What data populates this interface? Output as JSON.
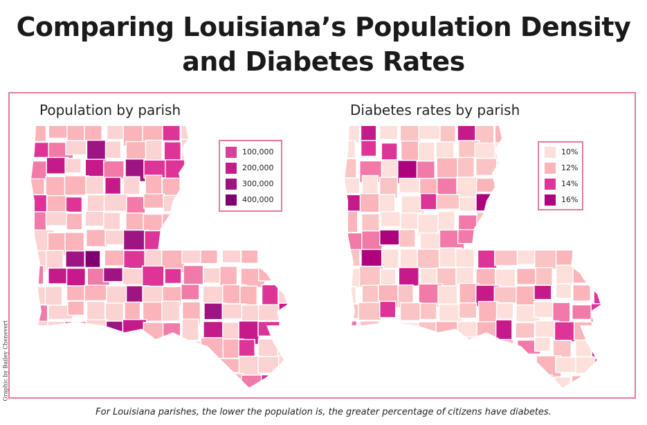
{
  "title_line1": "Comparing Louisiana’s Population Density",
  "title_line2": "and Diabetes Rates",
  "maps": [
    {
      "title": "Population by parish",
      "legend": [
        {
          "label": "100,000",
          "color": "#d8409a"
        },
        {
          "label": "200,000",
          "color": "#c51b8a"
        },
        {
          "label": "300,000",
          "color": "#9f1483"
        },
        {
          "label": "400,000",
          "color": "#7f0070"
        }
      ],
      "fill_colors": [
        "#fbd3d3",
        "#fbb4b9",
        "#f17aa8",
        "#dd3497",
        "#c51b8a",
        "#9f1483",
        "#7f0070"
      ]
    },
    {
      "title": "Diabetes rates by parish",
      "legend": [
        {
          "label": "10%",
          "color": "#fde0dc"
        },
        {
          "label": "12%",
          "color": "#fbb4b9"
        },
        {
          "label": "14%",
          "color": "#dd3497"
        },
        {
          "label": "16%",
          "color": "#ae017e"
        }
      ],
      "fill_colors": [
        "#fde0dc",
        "#fbc4c4",
        "#fbb4b9",
        "#f17aa8",
        "#dd3497",
        "#c51b8a",
        "#ae017e"
      ]
    }
  ],
  "credit": "Graphic by Bailey Chenevert",
  "caption": "For Louisiana parishes, the lower the population is, the greater percentage of citizens have diabetes."
}
